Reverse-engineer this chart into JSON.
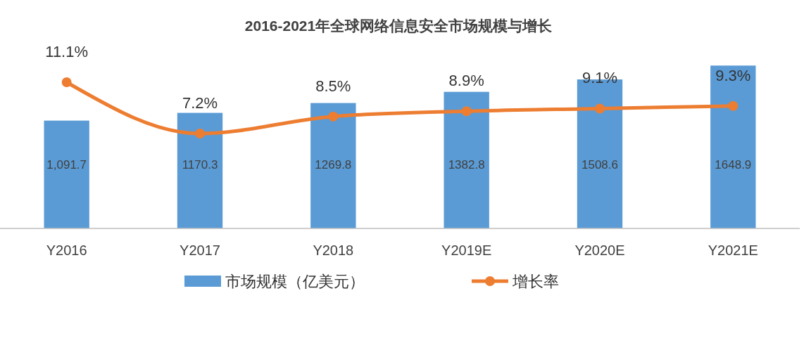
{
  "chart_data": {
    "type": "bar",
    "title": "2016-2021年全球网络信息安全市场规模与增长",
    "categories": [
      "Y2016",
      "Y2017",
      "Y2018",
      "Y2019E",
      "Y2020E",
      "Y2021E"
    ],
    "series": [
      {
        "name": "市场规模（亿美元）",
        "type": "bar",
        "color": "#5b9bd5",
        "values": [
          1091.7,
          1170.3,
          1269.8,
          1382.8,
          1508.6,
          1648.9
        ],
        "value_labels": [
          "1,091.7",
          "1170.3",
          "1269.8",
          "1382.8",
          "1508.6",
          "1648.9"
        ]
      },
      {
        "name": "增长率",
        "type": "line",
        "axis": "y2",
        "color": "#ed7d31",
        "marker": "circle",
        "values": [
          11.1,
          7.2,
          8.5,
          8.9,
          9.1,
          9.3
        ],
        "value_labels": [
          "11.1%",
          "7.2%",
          "8.5%",
          "8.9%",
          "9.1%",
          "9.3%"
        ]
      }
    ],
    "legend": "bottom"
  }
}
